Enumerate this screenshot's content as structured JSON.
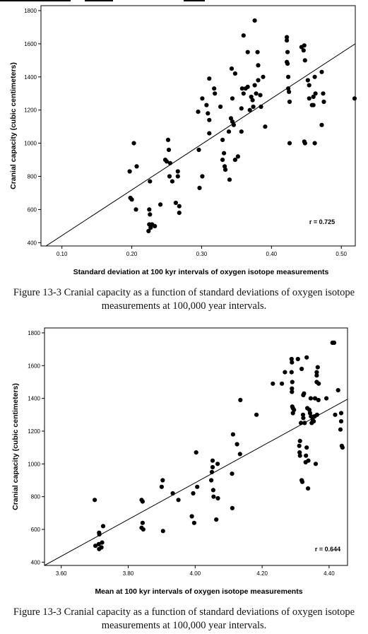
{
  "chart_data": [
    {
      "type": "scatter",
      "title": "",
      "xlabel": "Standard deviation at 100 kyr intervals of oxygen isotope measurements",
      "ylabel": "Cranial capacity (cubic centimeters)",
      "xlim": [
        0.07,
        0.52
      ],
      "ylim": [
        380,
        1830
      ],
      "xticks": [
        "0.10",
        "0.20",
        "0.30",
        "0.40",
        "0.50"
      ],
      "yticks": [
        "400",
        "600",
        "800",
        "1000",
        "1200",
        "1400",
        "1600",
        "1800"
      ],
      "annotation": "r = 0.725",
      "fit_line": {
        "x": [
          0.07,
          0.52
        ],
        "y": [
          360,
          1600
        ]
      },
      "grid": false,
      "points": [
        [
          0.197,
          830
        ],
        [
          0.203,
          1000
        ],
        [
          0.198,
          670
        ],
        [
          0.2,
          660
        ],
        [
          0.207,
          860
        ],
        [
          0.206,
          600
        ],
        [
          0.226,
          770
        ],
        [
          0.225,
          600
        ],
        [
          0.226,
          570
        ],
        [
          0.225,
          510
        ],
        [
          0.227,
          490
        ],
        [
          0.229,
          510
        ],
        [
          0.233,
          500
        ],
        [
          0.224,
          470
        ],
        [
          0.241,
          630
        ],
        [
          0.248,
          900
        ],
        [
          0.252,
          1020
        ],
        [
          0.253,
          960
        ],
        [
          0.25,
          890
        ],
        [
          0.255,
          880
        ],
        [
          0.254,
          800
        ],
        [
          0.258,
          770
        ],
        [
          0.263,
          640
        ],
        [
          0.268,
          620
        ],
        [
          0.268,
          580
        ],
        [
          0.266,
          800
        ],
        [
          0.266,
          830
        ],
        [
          0.295,
          1190
        ],
        [
          0.301,
          1270
        ],
        [
          0.296,
          960
        ],
        [
          0.297,
          730
        ],
        [
          0.301,
          800
        ],
        [
          0.307,
          1230
        ],
        [
          0.311,
          1390
        ],
        [
          0.309,
          1180
        ],
        [
          0.311,
          1140
        ],
        [
          0.311,
          1060
        ],
        [
          0.319,
          1300
        ],
        [
          0.318,
          1330
        ],
        [
          0.327,
          1220
        ],
        [
          0.33,
          1020
        ],
        [
          0.332,
          940
        ],
        [
          0.33,
          900
        ],
        [
          0.334,
          840
        ],
        [
          0.333,
          860
        ],
        [
          0.34,
          780
        ],
        [
          0.339,
          1070
        ],
        [
          0.342,
          1150
        ],
        [
          0.344,
          1130
        ],
        [
          0.346,
          1110
        ],
        [
          0.343,
          1450
        ],
        [
          0.344,
          1270
        ],
        [
          0.348,
          1420
        ],
        [
          0.348,
          900
        ],
        [
          0.352,
          920
        ],
        [
          0.357,
          1070
        ],
        [
          0.357,
          1210
        ],
        [
          0.358,
          1330
        ],
        [
          0.36,
          1650
        ],
        [
          0.36,
          1300
        ],
        [
          0.363,
          1330
        ],
        [
          0.366,
          1550
        ],
        [
          0.366,
          1340
        ],
        [
          0.369,
          1200
        ],
        [
          0.371,
          1280
        ],
        [
          0.373,
          1260
        ],
        [
          0.376,
          1740
        ],
        [
          0.374,
          1220
        ],
        [
          0.376,
          1350
        ],
        [
          0.378,
          1300
        ],
        [
          0.38,
          1550
        ],
        [
          0.381,
          1470
        ],
        [
          0.384,
          1290
        ],
        [
          0.385,
          1220
        ],
        [
          0.388,
          1400
        ],
        [
          0.391,
          1100
        ],
        [
          0.381,
          1380
        ],
        [
          0.422,
          1640
        ],
        [
          0.422,
          1620
        ],
        [
          0.423,
          1550
        ],
        [
          0.422,
          1490
        ],
        [
          0.423,
          1480
        ],
        [
          0.424,
          1400
        ],
        [
          0.424,
          1330
        ],
        [
          0.425,
          1310
        ],
        [
          0.426,
          1250
        ],
        [
          0.426,
          1000
        ],
        [
          0.443,
          1580
        ],
        [
          0.447,
          1590
        ],
        [
          0.446,
          1560
        ],
        [
          0.448,
          1500
        ],
        [
          0.447,
          1010
        ],
        [
          0.448,
          1000
        ],
        [
          0.452,
          1380
        ],
        [
          0.454,
          1350
        ],
        [
          0.454,
          1270
        ],
        [
          0.458,
          1230
        ],
        [
          0.46,
          1230
        ],
        [
          0.46,
          1280
        ],
        [
          0.462,
          1000
        ],
        [
          0.462,
          1400
        ],
        [
          0.463,
          1300
        ],
        [
          0.472,
          1430
        ],
        [
          0.474,
          1300
        ],
        [
          0.475,
          1250
        ],
        [
          0.472,
          1110
        ],
        [
          0.519,
          1270
        ]
      ]
    },
    {
      "type": "scatter",
      "title": "",
      "xlabel": "Mean at 100 kyr intervals of oxygen isotope measurements",
      "ylabel": "Cranial capacity (cubic centimeters)",
      "xlim": [
        3.55,
        4.455
      ],
      "ylim": [
        380,
        1830
      ],
      "xticks": [
        "3.60",
        "3.80",
        "4.00",
        "4.20",
        "4.40"
      ],
      "yticks": [
        "400",
        "600",
        "800",
        "1000",
        "1200",
        "1400",
        "1600",
        "1800"
      ],
      "annotation": "r = 0.644",
      "fit_line": {
        "x": [
          3.55,
          4.455
        ],
        "y": [
          380,
          1395
        ]
      },
      "grid": false,
      "points": [
        [
          3.7,
          780
        ],
        [
          3.702,
          500
        ],
        [
          3.712,
          510
        ],
        [
          3.714,
          570
        ],
        [
          3.713,
          580
        ],
        [
          3.713,
          480
        ],
        [
          3.72,
          490
        ],
        [
          3.722,
          520
        ],
        [
          3.725,
          620
        ],
        [
          3.84,
          780
        ],
        [
          3.843,
          770
        ],
        [
          3.84,
          610
        ],
        [
          3.843,
          640
        ],
        [
          3.845,
          600
        ],
        [
          3.9,
          860
        ],
        [
          3.903,
          900
        ],
        [
          3.904,
          590
        ],
        [
          3.933,
          820
        ],
        [
          3.95,
          780
        ],
        [
          3.99,
          680
        ],
        [
          3.994,
          820
        ],
        [
          3.997,
          640
        ],
        [
          4.003,
          1070
        ],
        [
          4.006,
          860
        ],
        [
          4.048,
          900
        ],
        [
          4.05,
          950
        ],
        [
          4.052,
          1020
        ],
        [
          4.052,
          980
        ],
        [
          4.054,
          840
        ],
        [
          4.055,
          800
        ],
        [
          4.063,
          660
        ],
        [
          4.067,
          1000
        ],
        [
          4.068,
          790
        ],
        [
          4.11,
          940
        ],
        [
          4.111,
          730
        ],
        [
          4.113,
          1180
        ],
        [
          4.125,
          1120
        ],
        [
          4.134,
          1060
        ],
        [
          4.135,
          1390
        ],
        [
          4.183,
          1300
        ],
        [
          4.232,
          1490
        ],
        [
          4.259,
          1490
        ],
        [
          4.268,
          1560
        ],
        [
          4.288,
          1640
        ],
        [
          4.289,
          1620
        ],
        [
          4.288,
          1560
        ],
        [
          4.29,
          1500
        ],
        [
          4.289,
          1460
        ],
        [
          4.289,
          1440
        ],
        [
          4.29,
          1350
        ],
        [
          4.292,
          1340
        ],
        [
          4.292,
          1310
        ],
        [
          4.295,
          1330
        ],
        [
          4.307,
          1640
        ],
        [
          4.311,
          1110
        ],
        [
          4.312,
          1070
        ],
        [
          4.313,
          1140
        ],
        [
          4.313,
          1050
        ],
        [
          4.316,
          1250
        ],
        [
          4.318,
          1580
        ],
        [
          4.318,
          900
        ],
        [
          4.32,
          890
        ],
        [
          4.322,
          1300
        ],
        [
          4.323,
          1420
        ],
        [
          4.323,
          1280
        ],
        [
          4.325,
          1430
        ],
        [
          4.327,
          1250
        ],
        [
          4.33,
          1010
        ],
        [
          4.331,
          1050
        ],
        [
          4.333,
          1650
        ],
        [
          4.333,
          1100
        ],
        [
          4.335,
          1340
        ],
        [
          4.337,
          850
        ],
        [
          4.338,
          1020
        ],
        [
          4.341,
          1330
        ],
        [
          4.343,
          1310
        ],
        [
          4.345,
          1400
        ],
        [
          4.346,
          1290
        ],
        [
          4.348,
          1250
        ],
        [
          4.351,
          1270
        ],
        [
          4.354,
          1260
        ],
        [
          4.356,
          1290
        ],
        [
          4.357,
          1290
        ],
        [
          4.358,
          1400
        ],
        [
          4.36,
          1000
        ],
        [
          4.363,
          1560
        ],
        [
          4.363,
          1540
        ],
        [
          4.363,
          1500
        ],
        [
          4.364,
          1300
        ],
        [
          4.366,
          1590
        ],
        [
          4.368,
          1390
        ],
        [
          4.369,
          1490
        ],
        [
          4.392,
          1400
        ],
        [
          4.41,
          1740
        ],
        [
          4.415,
          1740
        ],
        [
          4.418,
          1300
        ],
        [
          4.427,
          1450
        ],
        [
          4.434,
          1210
        ],
        [
          4.436,
          1260
        ],
        [
          4.436,
          1310
        ],
        [
          4.438,
          1110
        ],
        [
          4.44,
          1100
        ]
      ]
    }
  ],
  "captions": [
    "Figure 13-3 Cranial capacity as a function of standard deviations of oxygen isotope measurements at 100,000 year intervals.",
    "Figure 13-3 Cranial capacity as a function of standard deviations of oxygen isotope measurements at 100,000 year intervals."
  ]
}
